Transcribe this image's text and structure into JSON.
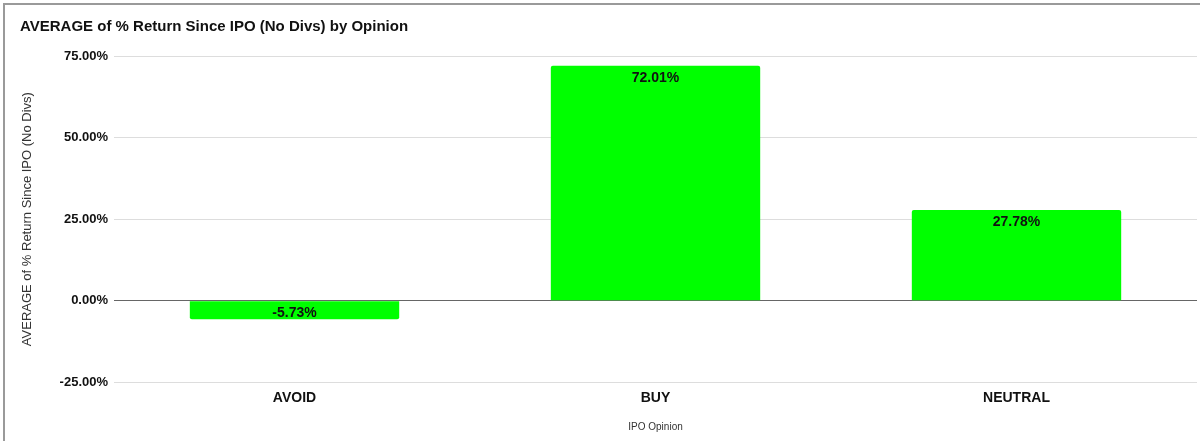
{
  "chart_data": {
    "type": "bar",
    "title": "AVERAGE of % Return Since IPO (No Divs) by Opinion",
    "xlabel": "IPO Opinion",
    "ylabel": "AVERAGE of % Return Since IPO (No Divs)",
    "categories": [
      "AVOID",
      "BUY",
      "NEUTRAL"
    ],
    "values": [
      -5.73,
      72.01,
      27.78
    ],
    "value_labels": [
      "-5.73%",
      "72.01%",
      "27.78%"
    ],
    "color": "#00ff00",
    "ylim": [
      -25,
      75
    ],
    "yticks": [
      {
        "value": -25,
        "label": "-25.00%"
      },
      {
        "value": 0,
        "label": "0.00%"
      },
      {
        "value": 25,
        "label": "25.00%"
      },
      {
        "value": 50,
        "label": "50.00%"
      },
      {
        "value": 75,
        "label": "75.00%"
      }
    ],
    "grid": "y"
  }
}
